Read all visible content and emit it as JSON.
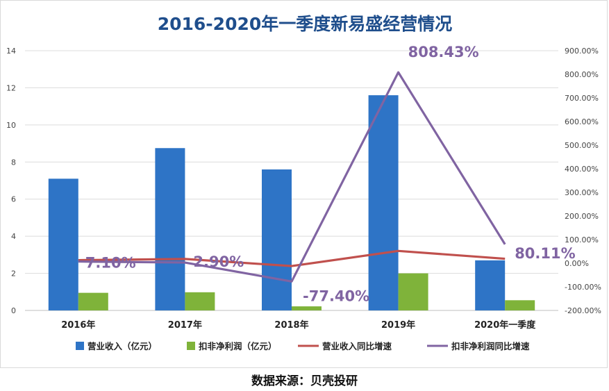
{
  "chart_data": {
    "type": "bar",
    "title": "2016-2020年一季度新易盛经营情况",
    "categories": [
      "2016年",
      "2017年",
      "2018年",
      "2019年",
      "2020年一季度"
    ],
    "left_axis": {
      "min": 0,
      "max": 14,
      "step": 2,
      "ticks": [
        "0",
        "2",
        "4",
        "6",
        "8",
        "10",
        "12",
        "14"
      ]
    },
    "right_axis": {
      "min": -200,
      "max": 900,
      "step": 100,
      "ticks": [
        "-200.00%",
        "-100.00%",
        "0.00%",
        "100.00%",
        "200.00%",
        "300.00%",
        "400.00%",
        "500.00%",
        "600.00%",
        "700.00%",
        "800.00%",
        "900.00%"
      ]
    },
    "series": [
      {
        "name": "营业收入（亿元）",
        "type": "bar",
        "axis": "left",
        "color": "#2e74c6",
        "values": [
          7.1,
          8.75,
          7.6,
          11.6,
          2.7
        ]
      },
      {
        "name": "扣非净利润（亿元）",
        "type": "bar",
        "axis": "left",
        "color": "#7fb33a",
        "values": [
          0.95,
          0.98,
          0.22,
          2.0,
          0.55
        ]
      },
      {
        "name": "营业收入同比增速",
        "type": "line",
        "axis": "right",
        "color": "#c0504d",
        "values": [
          13,
          18,
          -12,
          52,
          19
        ]
      },
      {
        "name": "扣非净利润同比增速",
        "type": "line",
        "axis": "right",
        "color": "#8064a2",
        "values": [
          7.1,
          2.9,
          -77.4,
          808.43,
          80.11
        ],
        "labels": [
          "7.10%",
          "2.90%",
          "-77.40%",
          "808.43%",
          "80.11%"
        ]
      }
    ],
    "grid": true,
    "legend": "bottom"
  },
  "source_text": "数据来源：贝壳投研"
}
